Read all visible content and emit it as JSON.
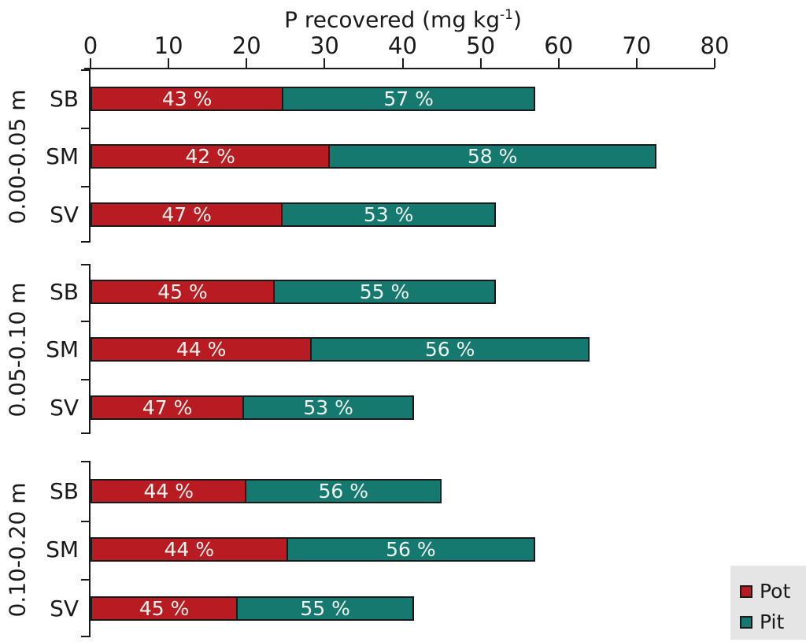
{
  "chart_data": {
    "type": "bar",
    "orientation": "horizontal",
    "stacked": true,
    "xlabel": "P recovered (mg kg-1)",
    "title_parts": {
      "main": "P recovered (mg kg",
      "sup": "-1",
      "end": ")"
    },
    "x_axis": {
      "min": 0,
      "max": 80,
      "ticks": [
        0,
        10,
        20,
        30,
        40,
        50,
        60,
        70,
        80
      ],
      "position": "top"
    },
    "legend": {
      "position": "bottom-right",
      "items": [
        {
          "label": "Pot",
          "color": "#b81c22"
        },
        {
          "label": "Pit",
          "color": "#15796f"
        }
      ]
    },
    "colors": {
      "pot": "#b81c22",
      "pit": "#15796f",
      "bar_border": "#1a1a1a",
      "bar_text": "#eff4ee",
      "axis": "#1a1a1a",
      "legend_bg": "#e5e5e5"
    },
    "groups": [
      {
        "label": "0.00-0.05 m",
        "bars": [
          {
            "category": "SB",
            "total": 57.0,
            "pot_pct": 43,
            "pit_pct": 57,
            "pot_label": "43 %",
            "pit_label": "57 %"
          },
          {
            "category": "SM",
            "total": 72.5,
            "pot_pct": 42,
            "pit_pct": 58,
            "pot_label": "42 %",
            "pit_label": "58 %"
          },
          {
            "category": "SV",
            "total": 52.0,
            "pot_pct": 47,
            "pit_pct": 53,
            "pot_label": "47 %",
            "pit_label": "53 %"
          }
        ]
      },
      {
        "label": "0.05-0.10 m",
        "bars": [
          {
            "category": "SB",
            "total": 52.0,
            "pot_pct": 45,
            "pit_pct": 55,
            "pot_label": "45 %",
            "pit_label": "55 %"
          },
          {
            "category": "SM",
            "total": 64.0,
            "pot_pct": 44,
            "pit_pct": 56,
            "pot_label": "44 %",
            "pit_label": "56 %"
          },
          {
            "category": "SV",
            "total": 41.5,
            "pot_pct": 47,
            "pit_pct": 53,
            "pot_label": "47 %",
            "pit_label": "53 %"
          }
        ]
      },
      {
        "label": "0.10-0.20 m",
        "bars": [
          {
            "category": "SB",
            "total": 45.0,
            "pot_pct": 44,
            "pit_pct": 56,
            "pot_label": "44 %",
            "pit_label": "56 %"
          },
          {
            "category": "SM",
            "total": 57.0,
            "pot_pct": 44,
            "pit_pct": 56,
            "pot_label": "44 %",
            "pit_label": "56 %"
          },
          {
            "category": "SV",
            "total": 41.5,
            "pot_pct": 45,
            "pit_pct": 55,
            "pot_label": "45 %",
            "pit_label": "55 %"
          }
        ]
      }
    ]
  }
}
